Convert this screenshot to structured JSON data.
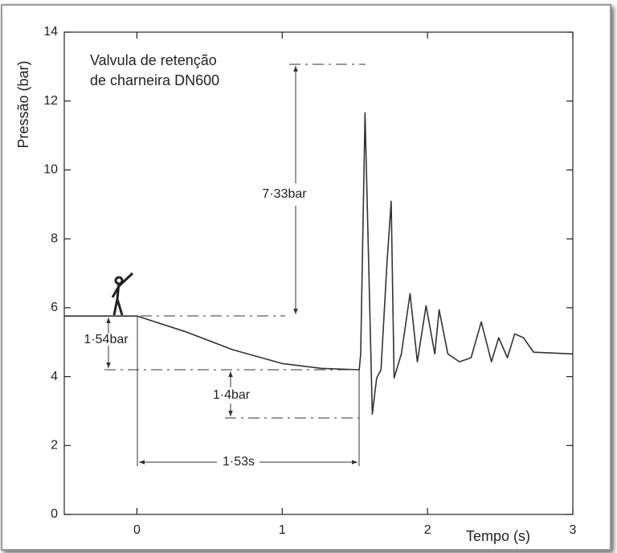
{
  "chart_data": {
    "type": "line",
    "title": [
      "Valvula de retenção",
      "de charneira DN600"
    ],
    "x_label": "Tempo (s)",
    "y_label": "Pressão (bar)",
    "xlim": [
      -0.5,
      3
    ],
    "xticks": [
      0,
      1,
      2,
      3
    ],
    "ylim": [
      0,
      14
    ],
    "yticks": [
      0,
      2,
      4,
      6,
      8,
      10,
      12,
      14
    ],
    "annotations": [
      "7·33bar",
      "1·54bar",
      "1·4bar",
      "1·53s"
    ],
    "series": [
      {
        "color": "#333333",
        "x": [
          -0.5,
          0,
          0.33,
          0.66,
          1.0,
          1.27,
          1.53,
          1.54,
          1.57,
          1.59,
          1.62,
          1.65,
          1.68,
          1.72,
          1.75,
          1.77,
          1.82,
          1.88,
          1.93,
          1.99,
          2.05,
          2.08,
          2.14,
          2.22,
          2.3,
          2.37,
          2.44,
          2.49,
          2.55,
          2.6,
          2.66,
          2.73,
          3.0
        ],
        "values": [
          5.76,
          5.76,
          5.31,
          4.78,
          4.38,
          4.24,
          4.2,
          4.66,
          11.66,
          8.16,
          2.91,
          3.96,
          4.2,
          7.23,
          9.09,
          3.96,
          4.66,
          6.41,
          4.43,
          6.06,
          4.66,
          5.94,
          4.66,
          4.43,
          4.55,
          5.59,
          4.43,
          5.13,
          4.55,
          5.24,
          5.13,
          4.71,
          4.66
        ]
      }
    ]
  }
}
